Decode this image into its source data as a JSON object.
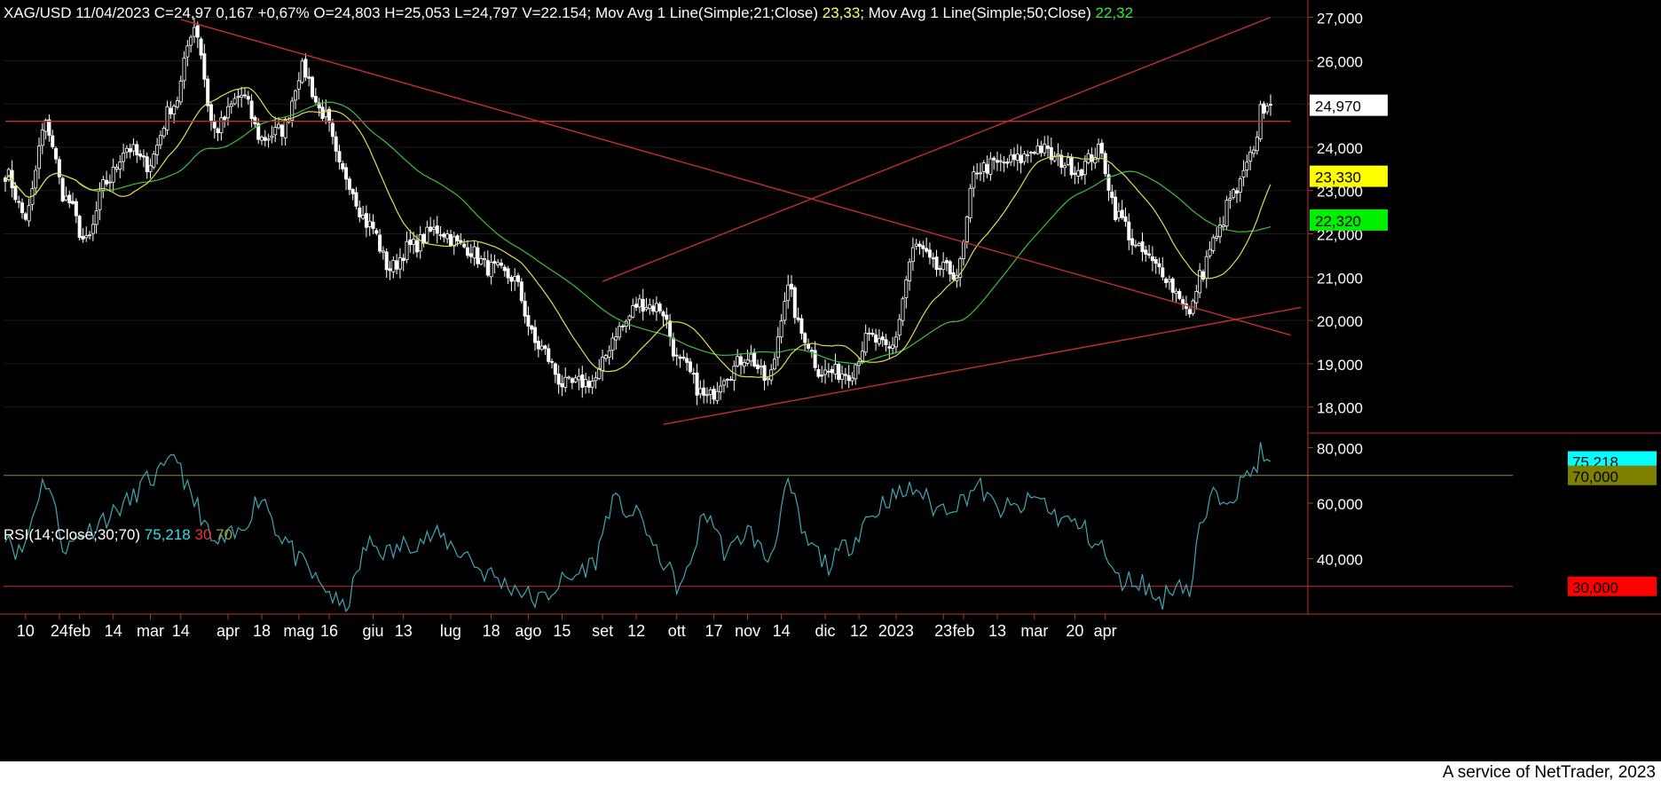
{
  "chart_data": [
    {
      "type": "candlestick",
      "title_parts": [
        {
          "text": "XAG/USD 11/04/2023 C=24,97 0,167 +0,67% O=24,803 H=25,053 L=24,797 V=22.154",
          "color": "#ffffff"
        },
        {
          "text": "; Mov Avg 1 Line(Simple;21;Close) ",
          "color": "#ffffff"
        },
        {
          "text": "23,33",
          "color": "#ffff66"
        },
        {
          "text": "; Mov Avg 1 Line(Simple;50;Close) ",
          "color": "#ffffff"
        },
        {
          "text": "22,32",
          "color": "#33ee33"
        }
      ],
      "ylim": [
        17400,
        27400
      ],
      "y_ticks": [
        "27,000",
        "26,000",
        "25,000",
        "24,000",
        "23,000",
        "22,000",
        "21,000",
        "20,000",
        "19,000",
        "18,000"
      ],
      "y_tick_values": [
        27000,
        26000,
        25000,
        24000,
        23000,
        22000,
        21000,
        20000,
        19000,
        18000
      ],
      "badges": [
        {
          "label": "24,970",
          "value": 24970,
          "bg": "#ffffff",
          "fg": "#000000"
        },
        {
          "label": "23,330",
          "value": 23330,
          "bg": "#ffff00",
          "fg": "#000000"
        },
        {
          "label": "22,320",
          "value": 22320,
          "bg": "#00ee00",
          "fg": "#000000"
        }
      ],
      "anchors": [
        [
          0,
          23400
        ],
        [
          6,
          22400
        ],
        [
          12,
          24500
        ],
        [
          18,
          22800
        ],
        [
          24,
          21800
        ],
        [
          30,
          23200
        ],
        [
          36,
          24000
        ],
        [
          42,
          23600
        ],
        [
          50,
          25000
        ],
        [
          56,
          26800
        ],
        [
          62,
          24400
        ],
        [
          70,
          25200
        ],
        [
          76,
          24200
        ],
        [
          82,
          24400
        ],
        [
          88,
          25800
        ],
        [
          94,
          24800
        ],
        [
          100,
          23400
        ],
        [
          108,
          22200
        ],
        [
          114,
          21200
        ],
        [
          120,
          21700
        ],
        [
          128,
          22100
        ],
        [
          136,
          21700
        ],
        [
          144,
          21200
        ],
        [
          150,
          21000
        ],
        [
          158,
          19400
        ],
        [
          166,
          18500
        ],
        [
          174,
          18600
        ],
        [
          182,
          19800
        ],
        [
          188,
          20400
        ],
        [
          194,
          20300
        ],
        [
          200,
          19000
        ],
        [
          208,
          18200
        ],
        [
          214,
          18800
        ],
        [
          220,
          19200
        ],
        [
          226,
          18600
        ],
        [
          232,
          20700
        ],
        [
          236,
          19700
        ],
        [
          242,
          18800
        ],
        [
          250,
          18800
        ],
        [
          256,
          19600
        ],
        [
          262,
          19300
        ],
        [
          270,
          21700
        ],
        [
          276,
          21200
        ],
        [
          282,
          21100
        ],
        [
          288,
          23500
        ],
        [
          294,
          23600
        ],
        [
          300,
          23700
        ],
        [
          306,
          24000
        ],
        [
          312,
          23700
        ],
        [
          318,
          23500
        ],
        [
          324,
          23900
        ],
        [
          330,
          22400
        ],
        [
          336,
          21600
        ],
        [
          342,
          21200
        ],
        [
          348,
          20600
        ],
        [
          351,
          20100
        ],
        [
          354,
          21000
        ],
        [
          358,
          21800
        ],
        [
          364,
          22900
        ],
        [
          370,
          23800
        ],
        [
          372,
          24900
        ],
        [
          375,
          24970
        ]
      ],
      "trend_lines": [
        {
          "p1": [
            0,
            24600
          ],
          "p2": [
            381,
            24600
          ],
          "color": "#c0302e"
        },
        {
          "p1": [
            52,
            26950
          ],
          "p2": [
            381,
            19660
          ],
          "color": "#c0302e"
        },
        {
          "p1": [
            177,
            20900
          ],
          "p2": [
            375,
            27000
          ],
          "color": "#c0302e"
        },
        {
          "p1": [
            195,
            17600
          ],
          "p2": [
            384,
            20300
          ],
          "color": "#c0302e"
        }
      ],
      "ma_fast_period": 21,
      "ma_slow_period": 50,
      "ma_fast_color": "#dede55",
      "ma_slow_color": "#3fbf3f",
      "candle_color": "#ffffff",
      "n_bars": 376
    },
    {
      "type": "line",
      "title_parts": [
        {
          "text": "RSI(14;Close;30;70) ",
          "color": "#ffffff"
        },
        {
          "text": "75,218",
          "color": "#33e0e0"
        },
        {
          "text": " ",
          "color": "#ffffff"
        },
        {
          "text": "30",
          "color": "#ee3333"
        },
        {
          "text": " ",
          "color": "#ffffff"
        },
        {
          "text": "70",
          "color": "#a0a040"
        }
      ],
      "ylim": [
        20,
        84
      ],
      "y_ticks": [
        "80,000",
        "60,000",
        "40,000"
      ],
      "y_tick_values": [
        80,
        60,
        40
      ],
      "levels": [
        {
          "value": 70,
          "color": "#8a8a4a"
        },
        {
          "value": 30,
          "color": "#c0302e"
        }
      ],
      "badges": [
        {
          "label": "75,218",
          "value": 75.2,
          "bg": "#00ffff",
          "fg": "#000000"
        },
        {
          "label": "70,000",
          "value": 70,
          "bg": "#808000",
          "fg": "#000000"
        },
        {
          "label": "30,000",
          "value": 30,
          "bg": "#ff0000",
          "fg": "#000000"
        }
      ],
      "series_color": "#3fa7b5",
      "anchors": [
        [
          0,
          50
        ],
        [
          4,
          42
        ],
        [
          12,
          68
        ],
        [
          18,
          44
        ],
        [
          24,
          50
        ],
        [
          30,
          55
        ],
        [
          36,
          60
        ],
        [
          42,
          68
        ],
        [
          48,
          72
        ],
        [
          50,
          78
        ],
        [
          56,
          60
        ],
        [
          62,
          45
        ],
        [
          68,
          48
        ],
        [
          76,
          62
        ],
        [
          82,
          48
        ],
        [
          88,
          38
        ],
        [
          94,
          30
        ],
        [
          100,
          22
        ],
        [
          108,
          45
        ],
        [
          114,
          42
        ],
        [
          120,
          46
        ],
        [
          128,
          48
        ],
        [
          136,
          42
        ],
        [
          142,
          35
        ],
        [
          150,
          30
        ],
        [
          158,
          25
        ],
        [
          166,
          32
        ],
        [
          174,
          38
        ],
        [
          180,
          60
        ],
        [
          188,
          55
        ],
        [
          194,
          40
        ],
        [
          200,
          30
        ],
        [
          208,
          56
        ],
        [
          214,
          42
        ],
        [
          220,
          50
        ],
        [
          226,
          40
        ],
        [
          232,
          65
        ],
        [
          238,
          45
        ],
        [
          244,
          38
        ],
        [
          250,
          45
        ],
        [
          256,
          55
        ],
        [
          262,
          62
        ],
        [
          270,
          65
        ],
        [
          276,
          58
        ],
        [
          282,
          60
        ],
        [
          288,
          66
        ],
        [
          294,
          58
        ],
        [
          300,
          58
        ],
        [
          306,
          62
        ],
        [
          312,
          55
        ],
        [
          318,
          52
        ],
        [
          324,
          45
        ],
        [
          330,
          32
        ],
        [
          336,
          32
        ],
        [
          342,
          25
        ],
        [
          348,
          32
        ],
        [
          351,
          28
        ],
        [
          354,
          50
        ],
        [
          358,
          62
        ],
        [
          364,
          64
        ],
        [
          370,
          72
        ],
        [
          372,
          78
        ],
        [
          375,
          75
        ]
      ]
    }
  ],
  "x_axis": {
    "labels": [
      {
        "text": "10",
        "bar": 6
      },
      {
        "text": "24",
        "bar": 16
      },
      {
        "text": "feb",
        "bar": 22
      },
      {
        "text": "14",
        "bar": 32
      },
      {
        "text": "mar",
        "bar": 43
      },
      {
        "text": "14",
        "bar": 52
      },
      {
        "text": "apr",
        "bar": 66
      },
      {
        "text": "18",
        "bar": 76
      },
      {
        "text": "mag",
        "bar": 87
      },
      {
        "text": "16",
        "bar": 96
      },
      {
        "text": "giu",
        "bar": 109
      },
      {
        "text": "13",
        "bar": 118
      },
      {
        "text": "lug",
        "bar": 132
      },
      {
        "text": "18",
        "bar": 144
      },
      {
        "text": "ago",
        "bar": 155
      },
      {
        "text": "15",
        "bar": 165
      },
      {
        "text": "set",
        "bar": 177
      },
      {
        "text": "12",
        "bar": 187
      },
      {
        "text": "ott",
        "bar": 199
      },
      {
        "text": "17",
        "bar": 210
      },
      {
        "text": "nov",
        "bar": 220
      },
      {
        "text": "14",
        "bar": 230
      },
      {
        "text": "dic",
        "bar": 243
      },
      {
        "text": "12",
        "bar": 253
      },
      {
        "text": "2023",
        "bar": 264
      },
      {
        "text": "23",
        "bar": 278
      },
      {
        "text": "feb",
        "bar": 284
      },
      {
        "text": "13",
        "bar": 294
      },
      {
        "text": "mar",
        "bar": 305
      },
      {
        "text": "20",
        "bar": 317
      },
      {
        "text": "apr",
        "bar": 326
      }
    ]
  },
  "footer": "A service of NetTrader, 2023",
  "colors": {
    "background": "#000000",
    "axis": "#c0302e",
    "text": "#ffffff"
  }
}
